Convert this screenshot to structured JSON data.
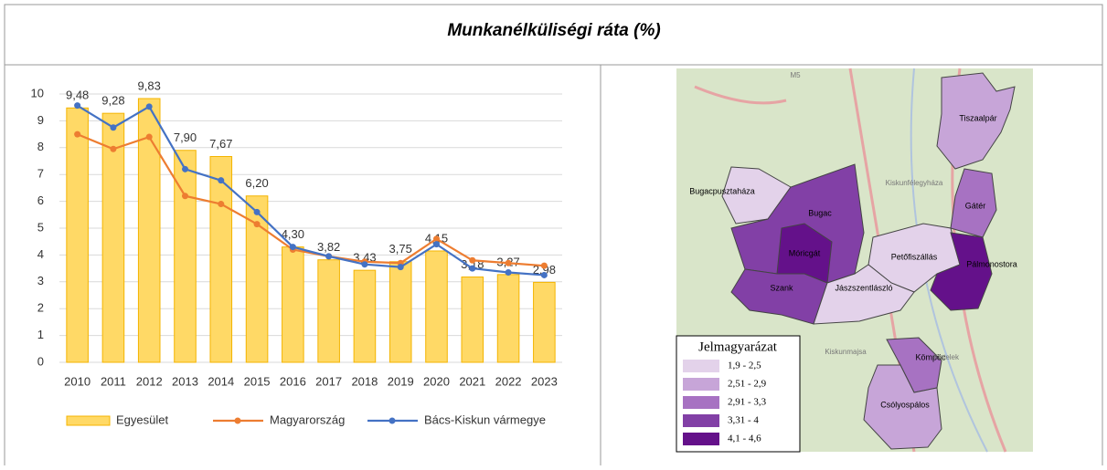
{
  "chart_data": {
    "type": "combo",
    "title": "Munkanélküliségi ráta (%)",
    "categories": [
      "2010",
      "2011",
      "2012",
      "2013",
      "2014",
      "2015",
      "2016",
      "2017",
      "2018",
      "2019",
      "2020",
      "2021",
      "2022",
      "2023"
    ],
    "series": [
      {
        "name": "Egyesület",
        "type": "bar",
        "color": "#ffd966",
        "values": [
          9.48,
          9.28,
          9.83,
          7.9,
          7.67,
          6.2,
          4.3,
          3.82,
          3.43,
          3.75,
          4.15,
          3.18,
          3.27,
          2.98
        ],
        "value_labels": [
          "9,48",
          "9,28",
          "9,83",
          "7,90",
          "7,67",
          "6,20",
          "4,30",
          "3,82",
          "3,43",
          "3,75",
          "4,15",
          "3,18",
          "3,27",
          "2,98"
        ]
      },
      {
        "name": "Magyarország",
        "type": "line",
        "color": "#ed7d31",
        "values": [
          8.5,
          7.95,
          8.4,
          6.2,
          5.9,
          5.15,
          4.2,
          3.95,
          3.75,
          3.7,
          4.6,
          3.8,
          3.7,
          3.6
        ]
      },
      {
        "name": "Bács-Kiskun vármegye",
        "type": "line",
        "color": "#4472c4",
        "values": [
          9.57,
          8.75,
          9.53,
          7.2,
          6.78,
          5.6,
          4.3,
          3.95,
          3.65,
          3.55,
          4.4,
          3.5,
          3.35,
          3.25
        ]
      }
    ],
    "ylim": [
      0,
      10
    ],
    "yticks": [
      0,
      1,
      2,
      3,
      4,
      5,
      6,
      7,
      8,
      9,
      10
    ],
    "grid": true,
    "legend": "bottom"
  },
  "map": {
    "places": [
      "Tiszaalpár",
      "Bugacpusztaháza",
      "Bugac",
      "Móricgát",
      "Petőfiszállás",
      "Gátér",
      "Pálmonostora",
      "Szank",
      "Jászszentlászló",
      "Kömpöc",
      "Csólyospálos"
    ],
    "background_labels": [
      "Kiskunfélegyháza",
      "Kiskunmajsa",
      "Kistelek",
      "M5"
    ],
    "legend_title": "Jelmagyarázat",
    "legend": [
      {
        "label": "1,9 - 2,5",
        "color": "#e3d2ea"
      },
      {
        "label": "2,51 - 2,9",
        "color": "#c7a5d8"
      },
      {
        "label": "2,91 - 3,3",
        "color": "#a772c2"
      },
      {
        "label": "3,31 - 4",
        "color": "#8240a6"
      },
      {
        "label": "4,1 - 4,6",
        "color": "#64118a"
      }
    ]
  }
}
